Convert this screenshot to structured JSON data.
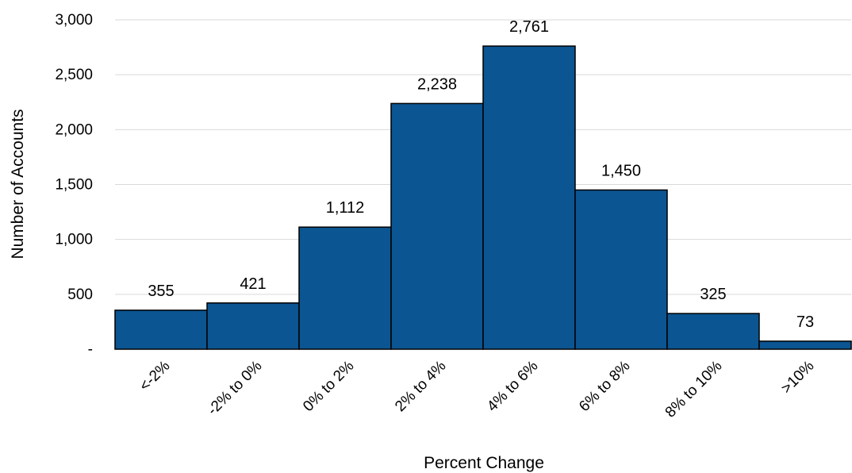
{
  "chart_data": {
    "type": "bar",
    "categories": [
      "<-2%",
      "-2% to 0%",
      "0% to 2%",
      "2% to 4%",
      "4% to 6%",
      "6% to 8%",
      "8% to 10%",
      ">10%"
    ],
    "values": [
      355,
      421,
      1112,
      2238,
      2761,
      1450,
      325,
      73
    ],
    "data_labels": [
      "355",
      "421",
      "1,112",
      "2,238",
      "2,761",
      "1,450",
      "325",
      "73"
    ],
    "xlabel": "Percent Change",
    "ylabel": "Number of Accounts",
    "ylim": [
      0,
      3000
    ],
    "y_ticks": [
      0,
      500,
      1000,
      1500,
      2000,
      2500,
      3000
    ],
    "y_tick_labels": [
      "-",
      "500",
      "1,000",
      "1,500",
      "2,000",
      "2,500",
      "3,000"
    ],
    "grid": true,
    "legend": "none",
    "bar_color": "#0b5592",
    "bar_edge_color": "#000000"
  }
}
